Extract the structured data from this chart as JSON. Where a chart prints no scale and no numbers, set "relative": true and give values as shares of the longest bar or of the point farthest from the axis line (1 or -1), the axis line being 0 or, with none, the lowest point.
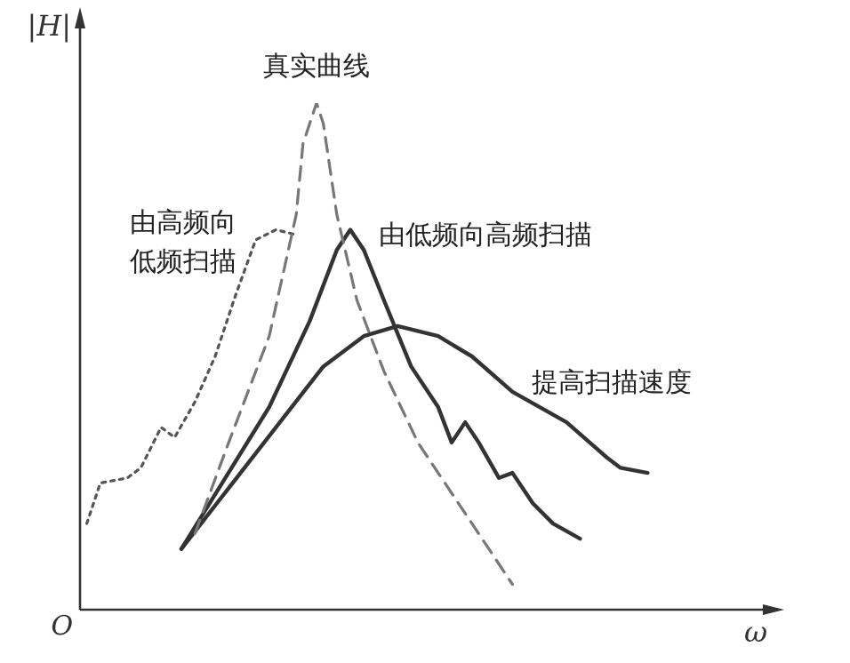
{
  "chart_data": {
    "type": "line",
    "relative": true,
    "xlabel": "ω",
    "ylabel": "|H|",
    "annotations": [
      "O"
    ],
    "legend": false,
    "marker": "none",
    "categories": [
      null,
      null,
      null,
      null,
      null,
      null,
      null,
      null,
      null,
      null,
      null,
      null,
      null,
      null,
      null,
      null,
      null,
      null,
      null,
      null,
      null,
      null,
      null,
      null,
      null,
      null,
      null,
      null,
      null,
      null,
      null,
      null,
      null,
      null,
      null,
      null,
      null,
      null,
      null,
      null,
      null,
      null,
      null,
      null,
      null,
      null,
      null,
      null,
      null,
      null,
      null,
      null,
      null,
      null,
      null,
      null,
      null,
      null,
      null,
      null,
      null,
      null,
      null,
      null,
      null,
      null,
      null,
      null,
      null,
      null,
      null,
      null,
      null,
      null,
      null,
      null,
      null,
      null,
      null,
      null,
      null,
      null,
      null,
      null,
      null,
      null,
      null,
      null,
      null,
      null,
      null,
      null,
      null,
      null,
      null,
      null,
      null,
      null,
      null,
      null,
      null
    ],
    "series": [
      {
        "name": "真实曲线",
        "color": "#777777",
        "line_style": "dashed",
        "values": [
          null,
          null,
          null,
          null,
          null,
          null,
          null,
          null,
          null,
          null,
          null,
          null,
          null,
          null,
          null,
          null,
          null,
          0.15,
          null,
          null,
          null,
          null,
          0.33,
          null,
          null,
          null,
          null,
          null,
          0.54,
          null,
          null,
          null,
          0.78,
          0.92,
          null,
          1,
          0.96,
          null,
          0.78,
          null,
          null,
          0.61,
          null,
          null,
          null,
          0.47,
          null,
          null,
          null,
          null,
          0.33,
          null,
          null,
          null,
          null,
          null,
          null,
          0.19,
          null,
          null,
          null,
          null,
          null,
          null,
          0.05,
          null,
          null,
          null,
          null,
          null,
          null,
          null,
          null,
          null,
          null,
          null,
          null,
          null,
          null,
          null,
          null,
          null,
          null,
          null,
          null,
          null,
          null,
          null,
          null,
          null,
          null,
          null,
          null,
          null,
          null,
          null,
          null,
          null,
          null,
          null,
          null
        ]
      },
      {
        "name": "由高频向低频扫描",
        "color": "#555555",
        "line_style": "dotted",
        "values": [
          null,
          0.17,
          null,
          0.25,
          null,
          null,
          null,
          0.26,
          null,
          0.28,
          null,
          null,
          0.36,
          null,
          0.34,
          null,
          null,
          0.41,
          null,
          null,
          0.5,
          null,
          null,
          0.62,
          null,
          null,
          0.73,
          null,
          null,
          0.75,
          null,
          null,
          0.74,
          null,
          null,
          null,
          null,
          null,
          null,
          null,
          null,
          null,
          null,
          null,
          null,
          null,
          null,
          null,
          null,
          null,
          null,
          null,
          null,
          null,
          null,
          null,
          null,
          null,
          null,
          null,
          null,
          null,
          null,
          null,
          null,
          null,
          null,
          null,
          null,
          null,
          null,
          null,
          null,
          null,
          null,
          null,
          null,
          null,
          null,
          null,
          null,
          null,
          null,
          null,
          null,
          null,
          null,
          null,
          null,
          null,
          null,
          null,
          null,
          null,
          null,
          null,
          null,
          null,
          null,
          null,
          null
        ]
      },
      {
        "name": "由低频向高频扫描",
        "color": "#333333",
        "line_style": "solid",
        "values": [
          null,
          null,
          null,
          null,
          null,
          null,
          null,
          null,
          null,
          null,
          null,
          null,
          null,
          null,
          null,
          0.12,
          null,
          null,
          null,
          null,
          null,
          null,
          null,
          null,
          null,
          null,
          null,
          null,
          0.4,
          null,
          null,
          null,
          null,
          null,
          0.57,
          null,
          null,
          null,
          0.71,
          null,
          0.75,
          null,
          0.71,
          null,
          null,
          0.61,
          null,
          null,
          null,
          0.48,
          null,
          null,
          null,
          0.4,
          null,
          0.33,
          null,
          0.37,
          null,
          0.33,
          null,
          null,
          0.26,
          null,
          0.27,
          null,
          null,
          0.21,
          null,
          null,
          0.17,
          null,
          null,
          null,
          0.14,
          null,
          null,
          null,
          null,
          null,
          null,
          null,
          null,
          null,
          null,
          null,
          null,
          null,
          null,
          null,
          null,
          null,
          null,
          null,
          null,
          null,
          null,
          null,
          null,
          null,
          null
        ]
      },
      {
        "name": "提高扫描速度",
        "color": "#333333",
        "line_style": "solid",
        "values": [
          null,
          null,
          null,
          null,
          null,
          null,
          null,
          null,
          null,
          null,
          null,
          null,
          null,
          null,
          null,
          0.12,
          null,
          null,
          null,
          null,
          null,
          null,
          null,
          null,
          null,
          null,
          null,
          null,
          null,
          null,
          null,
          null,
          null,
          null,
          null,
          null,
          0.48,
          null,
          null,
          null,
          null,
          null,
          0.54,
          null,
          null,
          null,
          null,
          0.56,
          null,
          null,
          null,
          null,
          null,
          0.54,
          null,
          null,
          null,
          null,
          0.5,
          null,
          null,
          null,
          null,
          null,
          0.43,
          null,
          null,
          null,
          null,
          null,
          null,
          null,
          0.37,
          null,
          null,
          null,
          null,
          null,
          0.3,
          null,
          0.28,
          null,
          null,
          null,
          0.27,
          null,
          null,
          null,
          null,
          null,
          null,
          null,
          null,
          null,
          null,
          null,
          null,
          null,
          null,
          null,
          null
        ]
      }
    ]
  }
}
